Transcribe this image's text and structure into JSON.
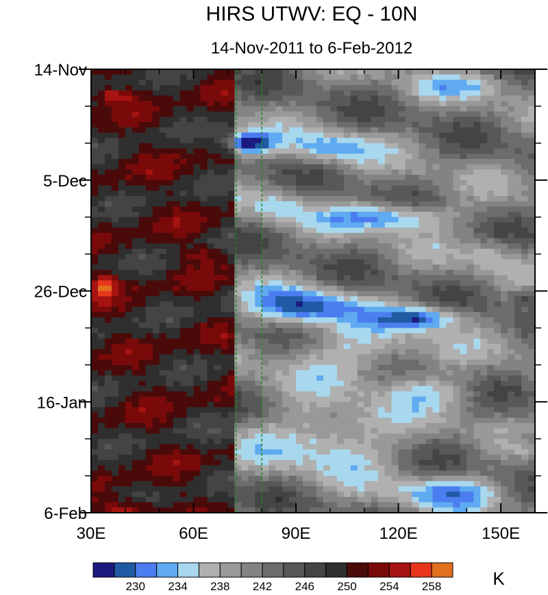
{
  "chart_data": {
    "type": "heatmap",
    "title": "HIRS UTWV: EQ - 10N",
    "subtitle": "14-Nov-2011 to 6-Feb-2012",
    "xlabel": "",
    "ylabel": "",
    "xlim": [
      30,
      160
    ],
    "x_ticks": [
      {
        "value": 30,
        "label": "30E"
      },
      {
        "value": 60,
        "label": "60E"
      },
      {
        "value": 90,
        "label": "90E"
      },
      {
        "value": 120,
        "label": "120E"
      },
      {
        "value": 150,
        "label": "150E"
      }
    ],
    "ylim_days": [
      0,
      84
    ],
    "y_ticks": [
      {
        "day": 0,
        "label": "14-Nov"
      },
      {
        "day": 21,
        "label": "5-Dec"
      },
      {
        "day": 42,
        "label": "26-Dec"
      },
      {
        "day": 63,
        "label": "16-Jan"
      },
      {
        "day": 84,
        "label": "6-Feb"
      }
    ],
    "reference_lines_lon": [
      72.5,
      80
    ],
    "reference_line_color": "#1a8c1a",
    "colorbar": {
      "unit_label": "K",
      "labels": [
        "230",
        "234",
        "238",
        "242",
        "246",
        "250",
        "254",
        "258"
      ],
      "bin_colors": [
        "#1a1a80",
        "#1f5aa3",
        "#4b7df0",
        "#5faaf0",
        "#a8d8ee",
        "#b0b0b0",
        "#999999",
        "#838383",
        "#6c6c6c",
        "#585858",
        "#444444",
        "#2f2f2f",
        "#4a0a0a",
        "#7a0a0a",
        "#a51410",
        "#e8361c",
        "#e0701e"
      ],
      "levels": [
        228,
        230,
        232,
        234,
        236,
        238,
        240,
        242,
        244,
        246,
        248,
        250,
        252,
        254,
        256,
        258,
        260,
        262
      ]
    },
    "field_description": "Hovmoller of upper-tropospheric water-vapor brightness temperature (K): warm/dry (gray-red) west of ~70E, cold/moist (blue) bands propagating east of ~70E."
  }
}
